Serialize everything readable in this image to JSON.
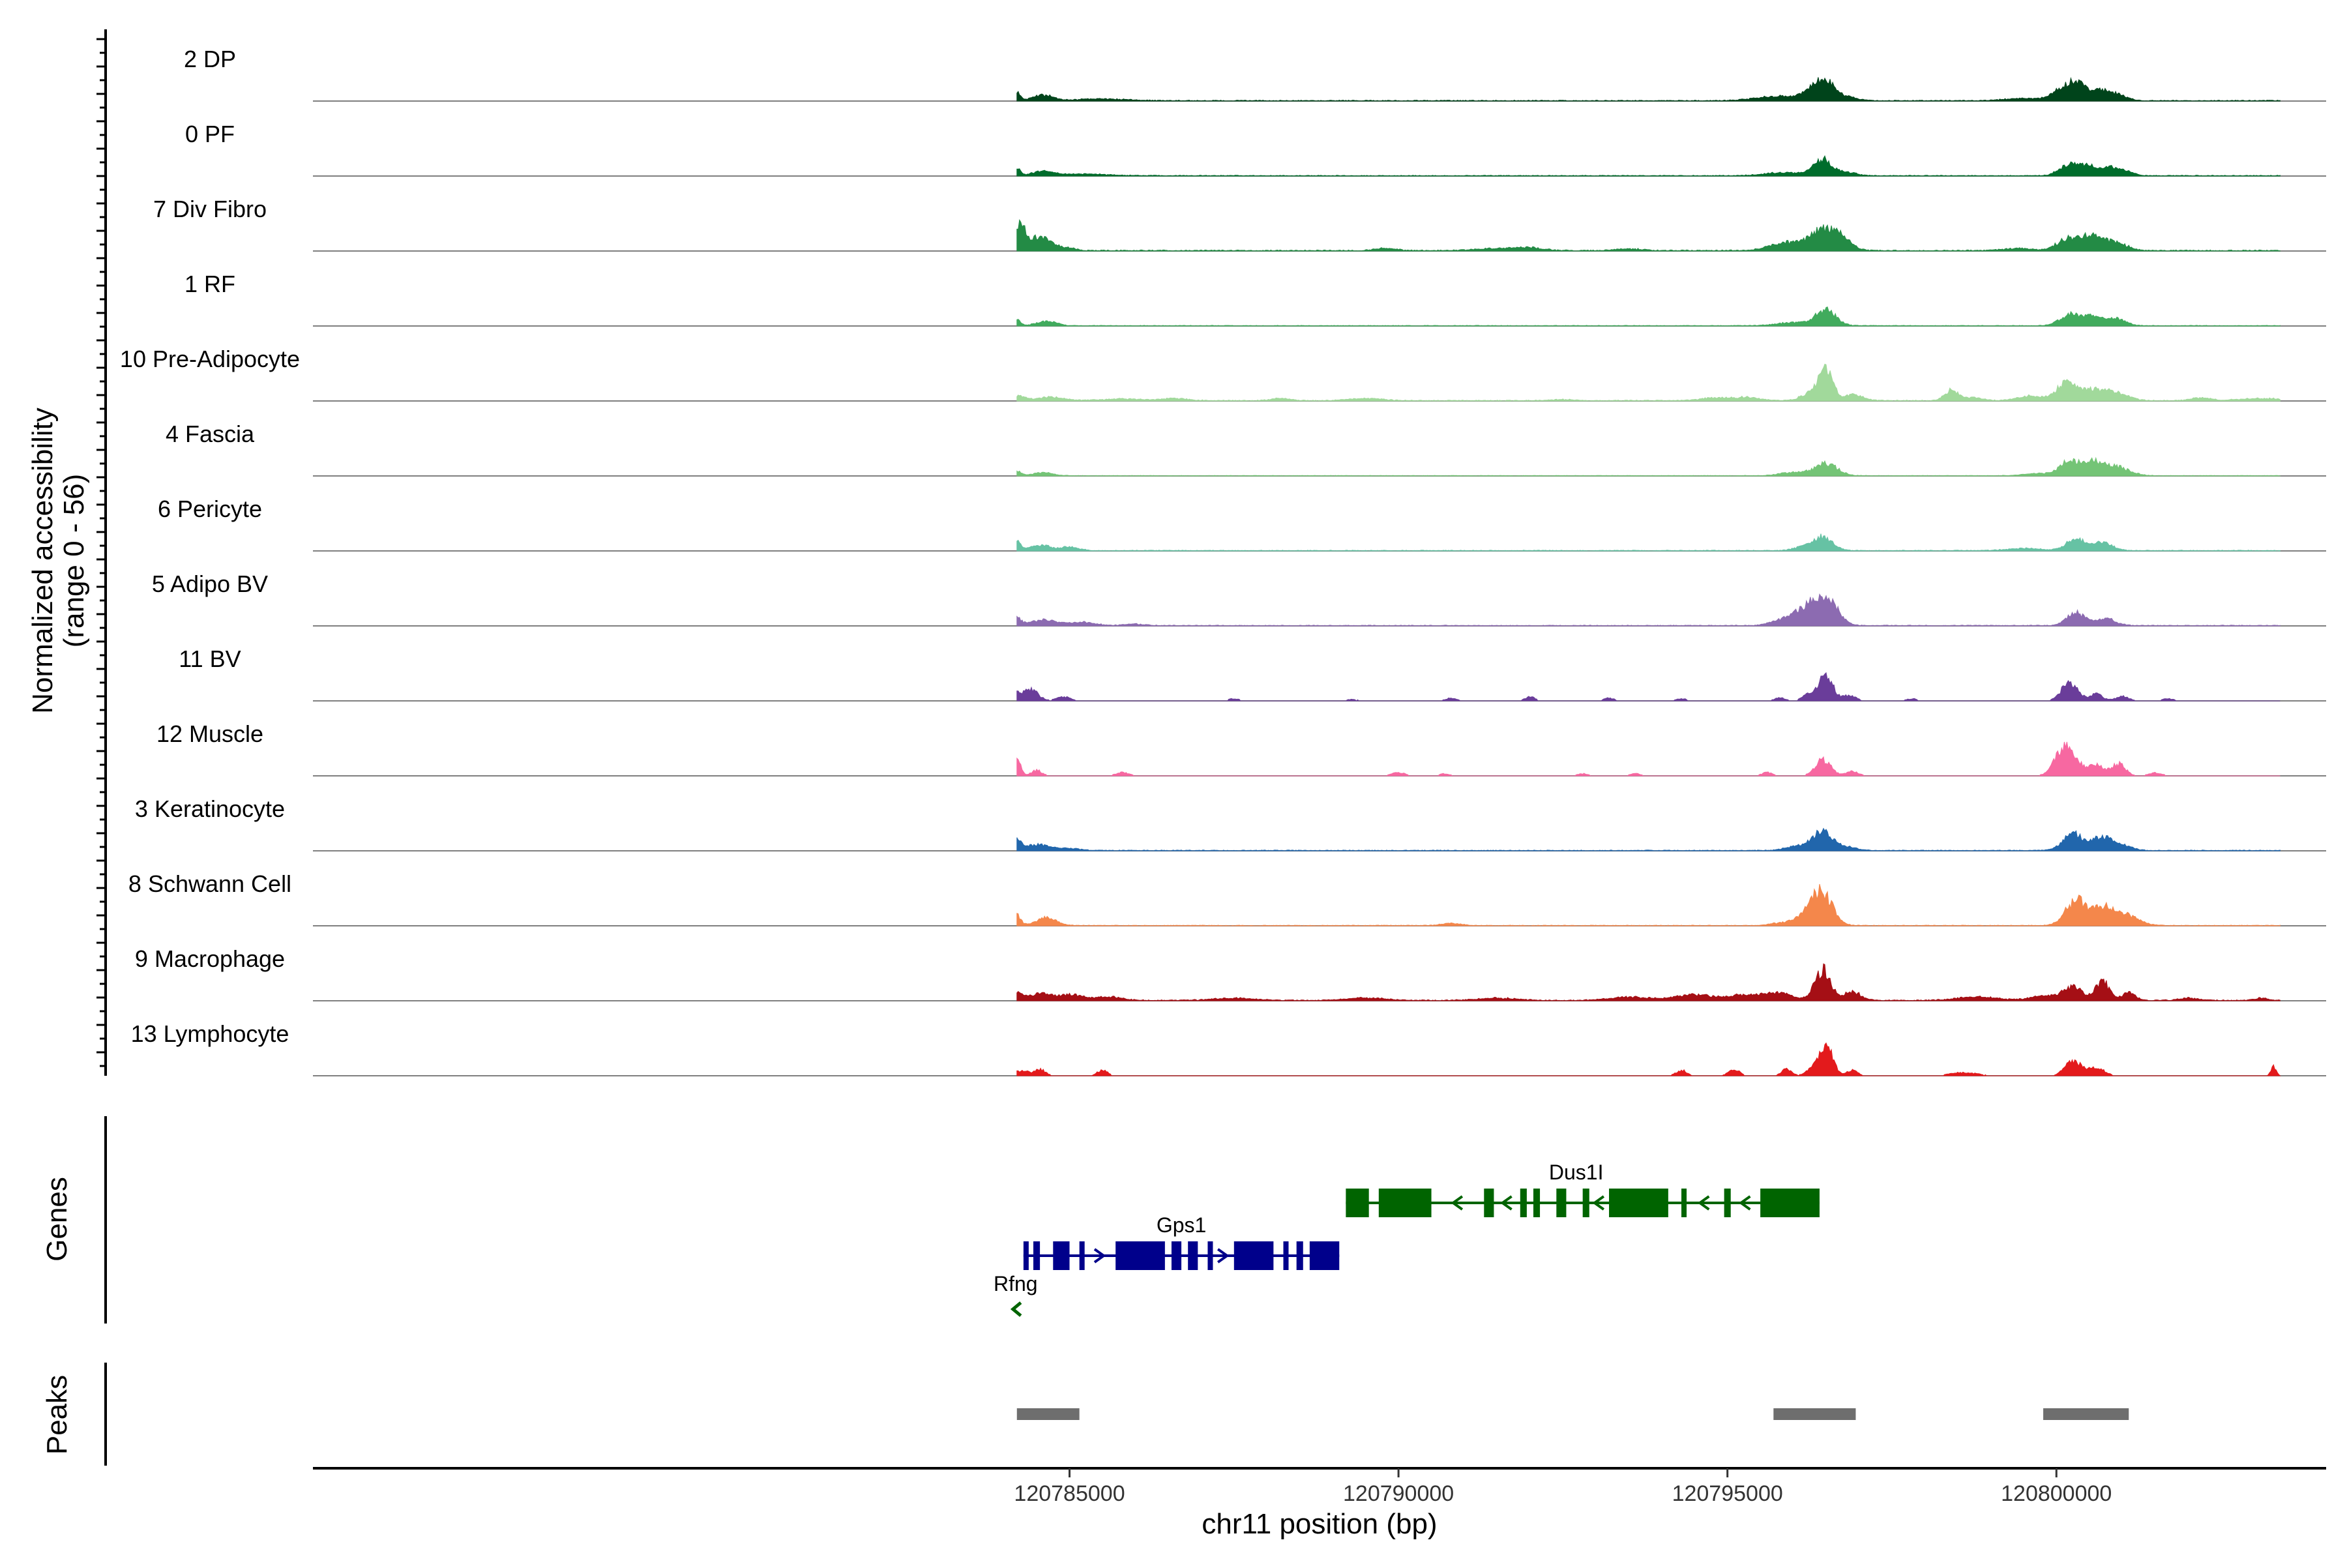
{
  "chart_data": {
    "type": "area",
    "title": "",
    "xlabel": "chr11 position (bp)",
    "ylabel": "Normalized accessibility",
    "ylabel_sub": "(range 0 - 56)",
    "xlim": [
      120773500,
      120804100
    ],
    "ylim": [
      0,
      56
    ],
    "x_ticks": [
      120785000,
      120790000,
      120795000,
      120800000
    ],
    "x_tick_labels": [
      "120785000",
      "120790000",
      "120795000",
      "120800000"
    ],
    "tracks": [
      {
        "name": "2 DP",
        "color": "#00441b",
        "peaks": [
          [
            120784200,
            8,
            50
          ],
          [
            120784600,
            5,
            150
          ],
          [
            120785500,
            1.5,
            400
          ],
          [
            120795800,
            4,
            350
          ],
          [
            120796350,
            15,
            150
          ],
          [
            120796550,
            10,
            100
          ],
          [
            120796800,
            4,
            150
          ],
          [
            120800150,
            12,
            180
          ],
          [
            120800350,
            10,
            120
          ],
          [
            120800650,
            8,
            120
          ],
          [
            120800900,
            6,
            150
          ],
          [
            120799500,
            2,
            300
          ]
        ],
        "noise": 0.8,
        "sparse": false
      },
      {
        "name": "0 PF",
        "color": "#006d2c",
        "peaks": [
          [
            120784200,
            7,
            50
          ],
          [
            120784600,
            4,
            150
          ],
          [
            120785200,
            1.5,
            400
          ],
          [
            120795900,
            3,
            300
          ],
          [
            120796450,
            14,
            140
          ],
          [
            120796800,
            3,
            150
          ],
          [
            120800200,
            10,
            150
          ],
          [
            120800500,
            8,
            120
          ],
          [
            120800800,
            7,
            120
          ],
          [
            120801050,
            4,
            120
          ]
        ],
        "noise": 0.7,
        "sparse": false
      },
      {
        "name": "7 Div Fibro",
        "color": "#238b45",
        "peaks": [
          [
            120784250,
            22,
            80
          ],
          [
            120784550,
            12,
            150
          ],
          [
            120784900,
            3,
            150
          ],
          [
            120789800,
            2,
            150
          ],
          [
            120791500,
            2,
            300
          ],
          [
            120792000,
            2.5,
            200
          ],
          [
            120793500,
            1.5,
            200
          ],
          [
            120795900,
            7,
            250
          ],
          [
            120796450,
            18,
            200
          ],
          [
            120796750,
            8,
            150
          ],
          [
            120800150,
            10,
            150
          ],
          [
            120800500,
            12,
            150
          ],
          [
            120800850,
            8,
            200
          ],
          [
            120799400,
            2,
            200
          ]
        ],
        "noise": 1.0,
        "sparse": false
      },
      {
        "name": "1 RF",
        "color": "#41ab5d",
        "peaks": [
          [
            120784200,
            6,
            50
          ],
          [
            120784650,
            4,
            150
          ],
          [
            120796500,
            14,
            150
          ],
          [
            120796000,
            3,
            250
          ],
          [
            120800200,
            10,
            150
          ],
          [
            120800550,
            9,
            140
          ],
          [
            120800900,
            6,
            150
          ]
        ],
        "noise": 0.6,
        "sparse": false
      },
      {
        "name": "10 Pre-Adipocyte",
        "color": "#a1d99b",
        "peaks": [
          [
            120784250,
            4,
            80
          ],
          [
            120784700,
            3,
            200
          ],
          [
            120785800,
            1.5,
            300
          ],
          [
            120786600,
            2,
            200
          ],
          [
            120788200,
            2,
            150
          ],
          [
            120789500,
            2,
            250
          ],
          [
            120792500,
            1,
            150
          ],
          [
            120794800,
            2.5,
            200
          ],
          [
            120795300,
            3,
            200
          ],
          [
            120796500,
            25,
            100
          ],
          [
            120796300,
            8,
            150
          ],
          [
            120796900,
            5,
            150
          ],
          [
            120798400,
            9,
            100
          ],
          [
            120798700,
            3,
            150
          ],
          [
            120800150,
            15,
            150
          ],
          [
            120800550,
            9,
            200
          ],
          [
            120800900,
            6,
            200
          ],
          [
            120799600,
            4,
            200
          ],
          [
            120802200,
            2.5,
            150
          ],
          [
            120803100,
            2,
            300
          ]
        ],
        "noise": 0.8,
        "sparse": false
      },
      {
        "name": "4 Fascia",
        "color": "#74c476",
        "peaks": [
          [
            120784200,
            4,
            60
          ],
          [
            120784600,
            3,
            150
          ],
          [
            120796500,
            11,
            170
          ],
          [
            120796000,
            3,
            200
          ],
          [
            120800200,
            13,
            150
          ],
          [
            120800550,
            11,
            150
          ],
          [
            120800900,
            8,
            200
          ],
          [
            120799700,
            2,
            200
          ]
        ],
        "noise": 0.5,
        "sparse": false
      },
      {
        "name": "6 Pericyte",
        "color": "#66c2a4",
        "peaks": [
          [
            120784200,
            8,
            60
          ],
          [
            120784550,
            5,
            150
          ],
          [
            120785000,
            3,
            150
          ],
          [
            120796450,
            12,
            150
          ],
          [
            120796150,
            3,
            150
          ],
          [
            120800300,
            10,
            150
          ],
          [
            120800700,
            7,
            150
          ],
          [
            120799500,
            2,
            250
          ]
        ],
        "noise": 0.7,
        "sparse": false
      },
      {
        "name": "5 Adipo BV",
        "color": "#8c6bb1",
        "peaks": [
          [
            120784200,
            7,
            60
          ],
          [
            120784600,
            5,
            200
          ],
          [
            120785200,
            3,
            200
          ],
          [
            120786000,
            1.5,
            150
          ],
          [
            120796300,
            18,
            200
          ],
          [
            120796550,
            16,
            150
          ],
          [
            120795900,
            6,
            200
          ],
          [
            120800300,
            11,
            140
          ],
          [
            120800750,
            6,
            150
          ]
        ],
        "noise": 0.7,
        "sparse": false
      },
      {
        "name": "11 BV",
        "color": "#6a3d9a",
        "peaks": [
          [
            120784400,
            10,
            120
          ],
          [
            120784200,
            4,
            60
          ],
          [
            120784900,
            4,
            100
          ],
          [
            120787500,
            2,
            80
          ],
          [
            120789300,
            1.5,
            80
          ],
          [
            120790800,
            2.5,
            80
          ],
          [
            120792000,
            3.5,
            80
          ],
          [
            120793200,
            2.5,
            80
          ],
          [
            120794300,
            2,
            80
          ],
          [
            120795800,
            3,
            80
          ],
          [
            120796500,
            24,
            100
          ],
          [
            120796250,
            6,
            100
          ],
          [
            120796850,
            5,
            100
          ],
          [
            120797800,
            2,
            80
          ],
          [
            120800200,
            17,
            120
          ],
          [
            120800600,
            6,
            100
          ],
          [
            120801000,
            4,
            100
          ],
          [
            120801700,
            2,
            80
          ]
        ],
        "noise": 0.0,
        "sparse": true
      },
      {
        "name": "12 Muscle",
        "color": "#f768a1",
        "peaks": [
          [
            120784200,
            14,
            60
          ],
          [
            120784500,
            5,
            80
          ],
          [
            120785800,
            3,
            100
          ],
          [
            120790000,
            3,
            100
          ],
          [
            120790700,
            2,
            80
          ],
          [
            120792800,
            2,
            80
          ],
          [
            120793600,
            2,
            80
          ],
          [
            120795600,
            3,
            80
          ],
          [
            120796450,
            14,
            120
          ],
          [
            120796900,
            4,
            100
          ],
          [
            120800150,
            28,
            150
          ],
          [
            120800600,
            10,
            120
          ],
          [
            120800950,
            11,
            100
          ],
          [
            120801500,
            3,
            100
          ]
        ],
        "noise": 0.0,
        "sparse": true
      },
      {
        "name": "3 Keratinocyte",
        "color": "#2166ac",
        "peaks": [
          [
            120784200,
            9,
            60
          ],
          [
            120784500,
            5,
            180
          ],
          [
            120784950,
            2,
            200
          ],
          [
            120796450,
            16,
            150
          ],
          [
            120796100,
            4,
            200
          ],
          [
            120796800,
            3,
            150
          ],
          [
            120800250,
            15,
            150
          ],
          [
            120800700,
            12,
            150
          ],
          [
            120801000,
            4,
            150
          ]
        ],
        "noise": 0.7,
        "sparse": false
      },
      {
        "name": "8 Schwann Cell",
        "color": "#f4874b",
        "peaks": [
          [
            120784200,
            9,
            60
          ],
          [
            120784650,
            7,
            150
          ],
          [
            120790800,
            2,
            150
          ],
          [
            120796450,
            27,
            150
          ],
          [
            120796250,
            10,
            150
          ],
          [
            120795900,
            3,
            200
          ],
          [
            120800300,
            22,
            160
          ],
          [
            120800700,
            15,
            150
          ],
          [
            120801050,
            9,
            200
          ]
        ],
        "noise": 0.6,
        "sparse": false
      },
      {
        "name": "9 Macrophage",
        "color": "#a50f15",
        "peaks": [
          [
            120784200,
            8,
            80
          ],
          [
            120784550,
            6,
            150
          ],
          [
            120785000,
            5,
            200
          ],
          [
            120785600,
            3,
            200
          ],
          [
            120787500,
            2,
            300
          ],
          [
            120789500,
            2,
            300
          ],
          [
            120791500,
            2,
            300
          ],
          [
            120793500,
            3,
            300
          ],
          [
            120794500,
            5,
            300
          ],
          [
            120795300,
            5,
            250
          ],
          [
            120795800,
            6,
            200
          ],
          [
            120796450,
            27,
            120
          ],
          [
            120796900,
            8,
            120
          ],
          [
            120798800,
            3,
            300
          ],
          [
            120799800,
            4,
            200
          ],
          [
            120800250,
            12,
            150
          ],
          [
            120800700,
            17,
            100
          ],
          [
            120801100,
            7,
            100
          ],
          [
            120802000,
            2,
            150
          ],
          [
            120803100,
            2,
            100
          ]
        ],
        "noise": 0.9,
        "sparse": false
      },
      {
        "name": "13 Lymphocyte",
        "color": "#e31a1c",
        "peaks": [
          [
            120784300,
            5,
            80
          ],
          [
            120784550,
            6,
            80
          ],
          [
            120785500,
            5,
            80
          ],
          [
            120794300,
            5,
            80
          ],
          [
            120795100,
            6,
            80
          ],
          [
            120795900,
            6,
            80
          ],
          [
            120796300,
            6,
            100
          ],
          [
            120796500,
            27,
            100
          ],
          [
            120796900,
            5,
            80
          ],
          [
            120798600,
            3,
            200
          ],
          [
            120800250,
            14,
            120
          ],
          [
            120800600,
            8,
            120
          ],
          [
            120803300,
            8,
            40
          ]
        ],
        "noise": 0.0,
        "sparse": true
      }
    ],
    "genes": [
      {
        "name": "Dus1l",
        "label": "Dus1I",
        "strand": "-",
        "start": 120789200,
        "end": 120796400,
        "color": "#006400",
        "exons": [
          [
            120789200,
            120789550
          ],
          [
            120789700,
            120790500
          ],
          [
            120791300,
            120791450
          ],
          [
            120791850,
            120791950
          ],
          [
            120792050,
            120792150
          ],
          [
            120792400,
            120792550
          ],
          [
            120792800,
            120792900
          ],
          [
            120793200,
            120794100
          ],
          [
            120794300,
            120794350
          ],
          [
            120794950,
            120795050
          ],
          [
            120795500,
            120796400
          ]
        ]
      },
      {
        "name": "Gps1",
        "label": "Gps1",
        "strand": "+",
        "start": 120784300,
        "end": 120789100,
        "color": "#00008b",
        "exons": [
          [
            120784300,
            120784350
          ],
          [
            120784450,
            120784550
          ],
          [
            120784750,
            120785000
          ],
          [
            120785150,
            120785200
          ],
          [
            120785700,
            120786450
          ],
          [
            120786550,
            120786700
          ],
          [
            120786800,
            120786950
          ],
          [
            120787100,
            120787150
          ],
          [
            120787500,
            120788100
          ],
          [
            120788250,
            120788300
          ],
          [
            120788450,
            120788550
          ],
          [
            120788650,
            120789100
          ]
        ]
      },
      {
        "name": "Rfng",
        "label": "Rfng",
        "strand": "-",
        "start": 120784200,
        "end": 120784280,
        "color": "#006400",
        "exons": []
      }
    ],
    "peaks_track": [
      [
        120784200,
        120785150
      ],
      [
        120795700,
        120796950
      ],
      [
        120799800,
        120801100
      ]
    ],
    "panel_labels": {
      "genes": "Genes",
      "peaks": "Peaks"
    }
  }
}
